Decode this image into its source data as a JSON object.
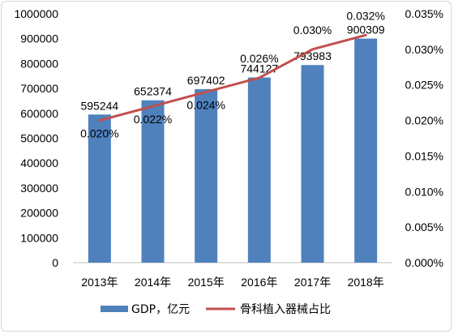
{
  "chart_data": {
    "type": "bar",
    "categories": [
      "2013年",
      "2014年",
      "2015年",
      "2016年",
      "2017年",
      "2018年"
    ],
    "series": [
      {
        "name": "GDP，亿元",
        "kind": "bar",
        "axis": "left",
        "color": "#4f81bd",
        "values": [
          595244,
          652374,
          697402,
          744127,
          793983,
          900309
        ],
        "labels": [
          "595244",
          "652374",
          "697402",
          "744127",
          "793983",
          "900309"
        ]
      },
      {
        "name": "骨科植入器械占比",
        "kind": "line",
        "axis": "right",
        "color": "#c0504d",
        "values": [
          0.02,
          0.022,
          0.024,
          0.026,
          0.03,
          0.032
        ],
        "labels": [
          "0.020%",
          "0.022%",
          "0.024%",
          "0.026%",
          "0.030%",
          "0.032%"
        ]
      }
    ],
    "y_left": {
      "lim": [
        0,
        1000000
      ],
      "ticks": [
        "0",
        "100000",
        "200000",
        "300000",
        "400000",
        "500000",
        "600000",
        "700000",
        "800000",
        "900000",
        "1000000"
      ]
    },
    "y_right": {
      "lim": [
        0,
        0.035
      ],
      "unit": "%",
      "ticks": [
        "0.000%",
        "0.005%",
        "0.010%",
        "0.015%",
        "0.020%",
        "0.025%",
        "0.030%",
        "0.035%"
      ]
    },
    "grid": false,
    "legend_position": "bottom"
  }
}
